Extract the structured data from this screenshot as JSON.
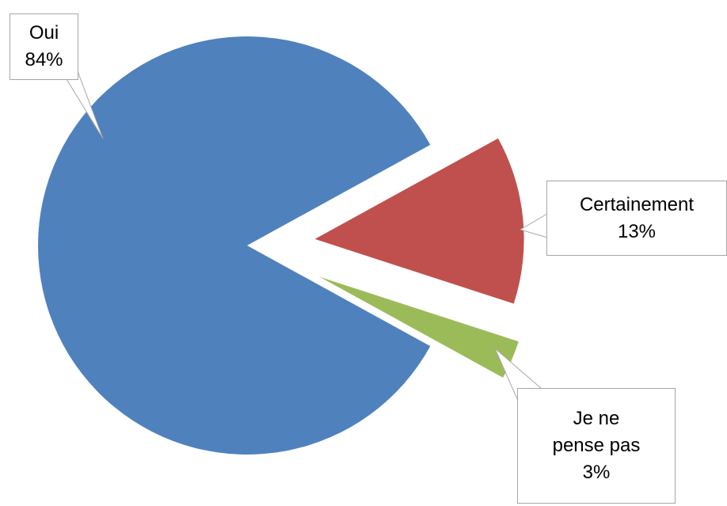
{
  "chart_data": {
    "type": "pie",
    "categories": [
      "Oui",
      "Certainement",
      "Je ne pense pas"
    ],
    "values": [
      84,
      13,
      3
    ],
    "value_labels": [
      "84%",
      "13%",
      "3%"
    ],
    "colors": [
      "#4f81bd",
      "#c0504d",
      "#9bbb59"
    ]
  }
}
